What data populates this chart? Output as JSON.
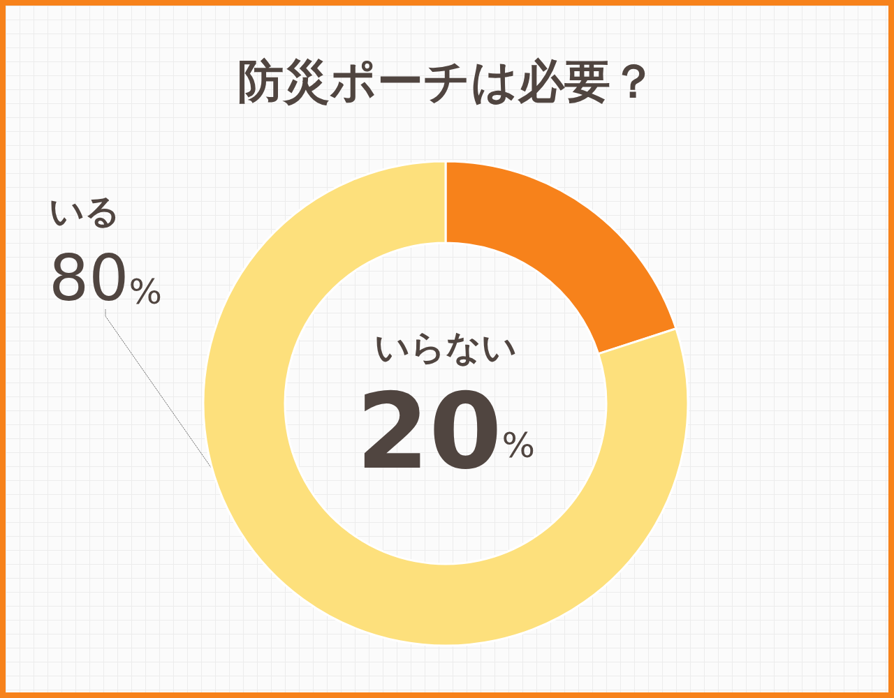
{
  "chart_data": {
    "type": "donut",
    "title": "防災ポーチは必要？",
    "categories": [
      "いらない",
      "いる"
    ],
    "values": [
      20,
      80
    ],
    "value_labels": [
      "20%",
      "80%"
    ],
    "colors": [
      "#f7821b",
      "#fde07c"
    ],
    "legend": false
  }
}
